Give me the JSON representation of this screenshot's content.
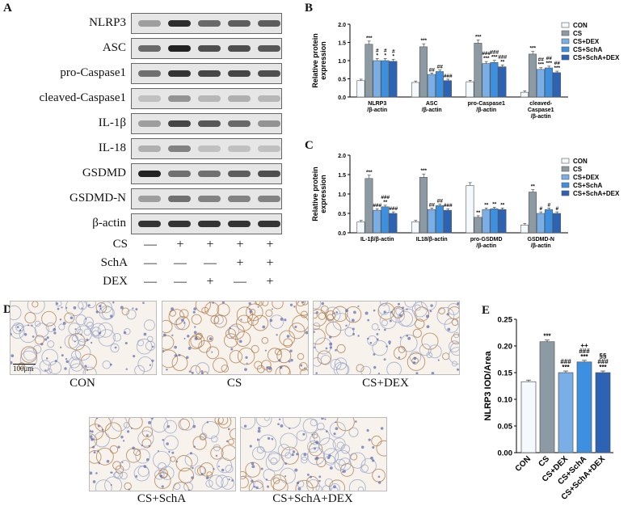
{
  "panels": {
    "A": "A",
    "B": "B",
    "C": "C",
    "D": "D",
    "E": "E"
  },
  "blot": {
    "rows": [
      {
        "label": "NLRP3",
        "bands": [
          0.3,
          0.95,
          0.6,
          0.65,
          0.65
        ]
      },
      {
        "label": "ASC",
        "bands": [
          0.6,
          1.0,
          0.75,
          0.75,
          0.7
        ]
      },
      {
        "label": "pro-Caspase1",
        "bands": [
          0.55,
          0.9,
          0.8,
          0.8,
          0.75
        ]
      },
      {
        "label": "cleaved-Caspase1",
        "bands": [
          0.1,
          0.35,
          0.15,
          0.2,
          0.15
        ]
      },
      {
        "label": "IL-1β",
        "bands": [
          0.3,
          0.8,
          0.7,
          0.6,
          0.35
        ]
      },
      {
        "label": "IL-18",
        "bands": [
          0.2,
          0.45,
          0.1,
          0.1,
          0.1
        ]
      },
      {
        "label": "GSDMD",
        "bands": [
          1.0,
          0.55,
          0.55,
          0.65,
          0.75
        ]
      },
      {
        "label": "GSDMD-N",
        "bands": [
          0.3,
          0.55,
          0.45,
          0.45,
          0.45
        ]
      },
      {
        "label": "β-actin",
        "bands": [
          0.9,
          0.9,
          0.9,
          0.9,
          0.9
        ]
      }
    ],
    "treatments": [
      {
        "label": "CS",
        "signs": [
          "—",
          "+",
          "+",
          "+",
          "+"
        ]
      },
      {
        "label": "SchA",
        "signs": [
          "—",
          "—",
          "—",
          "+",
          "+"
        ]
      },
      {
        "label": "DEX",
        "signs": [
          "—",
          "—",
          "+",
          "—",
          "+"
        ]
      }
    ]
  },
  "legend": [
    "CON",
    "CS",
    "CS+DEX",
    "CS+SchA",
    "CS+SchA+DEX"
  ],
  "colors": [
    "#f4f9fd",
    "#8c9ba3",
    "#7aaee6",
    "#3d8fe0",
    "#2d63b5"
  ],
  "microscopy": {
    "scale_bar": "100μm",
    "images": [
      {
        "label": "CON",
        "stain": 0.15
      },
      {
        "label": "CS",
        "stain": 0.9
      },
      {
        "label": "CS+DEX",
        "stain": 0.35
      },
      {
        "label": "CS+SchA",
        "stain": 0.45
      },
      {
        "label": "CS+SchA+DEX",
        "stain": 0.3
      }
    ]
  },
  "chart_data": [
    {
      "type": "bar",
      "ylabel": "Relative protein expression",
      "ylim": [
        0,
        2.0
      ],
      "yticks": [
        "0.0",
        "0.5",
        "1.0",
        "1.5",
        "2.0"
      ],
      "categories": [
        "NLRP3\n/β-actin",
        "ASC\n/β-actin",
        "pro-Caspase1\n/β-actin",
        "cleaved-\nCaspase1\n/β-actin"
      ],
      "series": [
        {
          "name": "CON",
          "values": [
            0.45,
            0.4,
            0.42,
            0.13
          ]
        },
        {
          "name": "CS",
          "values": [
            1.45,
            1.38,
            1.48,
            1.18
          ]
        },
        {
          "name": "CS+DEX",
          "values": [
            1.0,
            0.62,
            0.92,
            0.76
          ]
        },
        {
          "name": "CS+SchA",
          "values": [
            1.0,
            0.7,
            0.95,
            0.8
          ]
        },
        {
          "name": "CS+SchA+DEX",
          "values": [
            0.98,
            0.45,
            0.83,
            0.67
          ]
        }
      ],
      "annotations": [
        [
          "",
          "***",
          "#\n*",
          "#\n*",
          "#\n*"
        ],
        [
          "",
          "***",
          "##",
          "##",
          "###"
        ],
        [
          "",
          "***",
          "###\n***",
          "###\n***",
          "###\n**"
        ],
        [
          "",
          "***",
          "##\n***",
          "##\n***",
          "##\n***"
        ]
      ]
    },
    {
      "type": "bar",
      "ylabel": "Relative protein expression",
      "ylim": [
        0,
        2.0
      ],
      "yticks": [
        "0.0",
        "0.5",
        "1.0",
        "1.5",
        "2.0"
      ],
      "categories": [
        "IL-1β/β-actin",
        "IL18/β-actin",
        "pro-GSDMD\n/β-actin",
        "GSDMD-N\n/β-actin"
      ],
      "series": [
        {
          "name": "CON",
          "values": [
            0.28,
            0.28,
            1.22,
            0.2
          ]
        },
        {
          "name": "CS",
          "values": [
            1.4,
            1.43,
            0.4,
            1.05
          ]
        },
        {
          "name": "CS+DEX",
          "values": [
            0.58,
            0.6,
            0.6,
            0.5
          ]
        },
        {
          "name": "CS+SchA",
          "values": [
            0.67,
            0.7,
            0.62,
            0.6
          ]
        },
        {
          "name": "CS+SchA+DEX",
          "values": [
            0.5,
            0.58,
            0.6,
            0.5
          ]
        }
      ],
      "annotations": [
        [
          "",
          "***",
          "###",
          "###\n**",
          "###"
        ],
        [
          "",
          "***",
          "##",
          "##",
          "###"
        ],
        [
          "",
          "**",
          "**",
          "**",
          "**"
        ],
        [
          "",
          "**",
          "#",
          "#",
          "#"
        ]
      ]
    },
    {
      "type": "bar",
      "ylabel": "NLRP3  IOD/Area",
      "ylim": [
        0,
        0.25
      ],
      "yticks": [
        "0.00",
        "0.05",
        "0.10",
        "0.15",
        "0.20",
        "0.25"
      ],
      "categories": [
        "CON",
        "CS",
        "CS+DEX",
        "CS+SchA",
        "CS+SchA+DEX"
      ],
      "values": [
        0.133,
        0.208,
        0.15,
        0.17,
        0.15
      ],
      "annotations": [
        "",
        "***",
        "###\n***",
        "++\n###\n***",
        "§§\n###\n***"
      ]
    }
  ]
}
